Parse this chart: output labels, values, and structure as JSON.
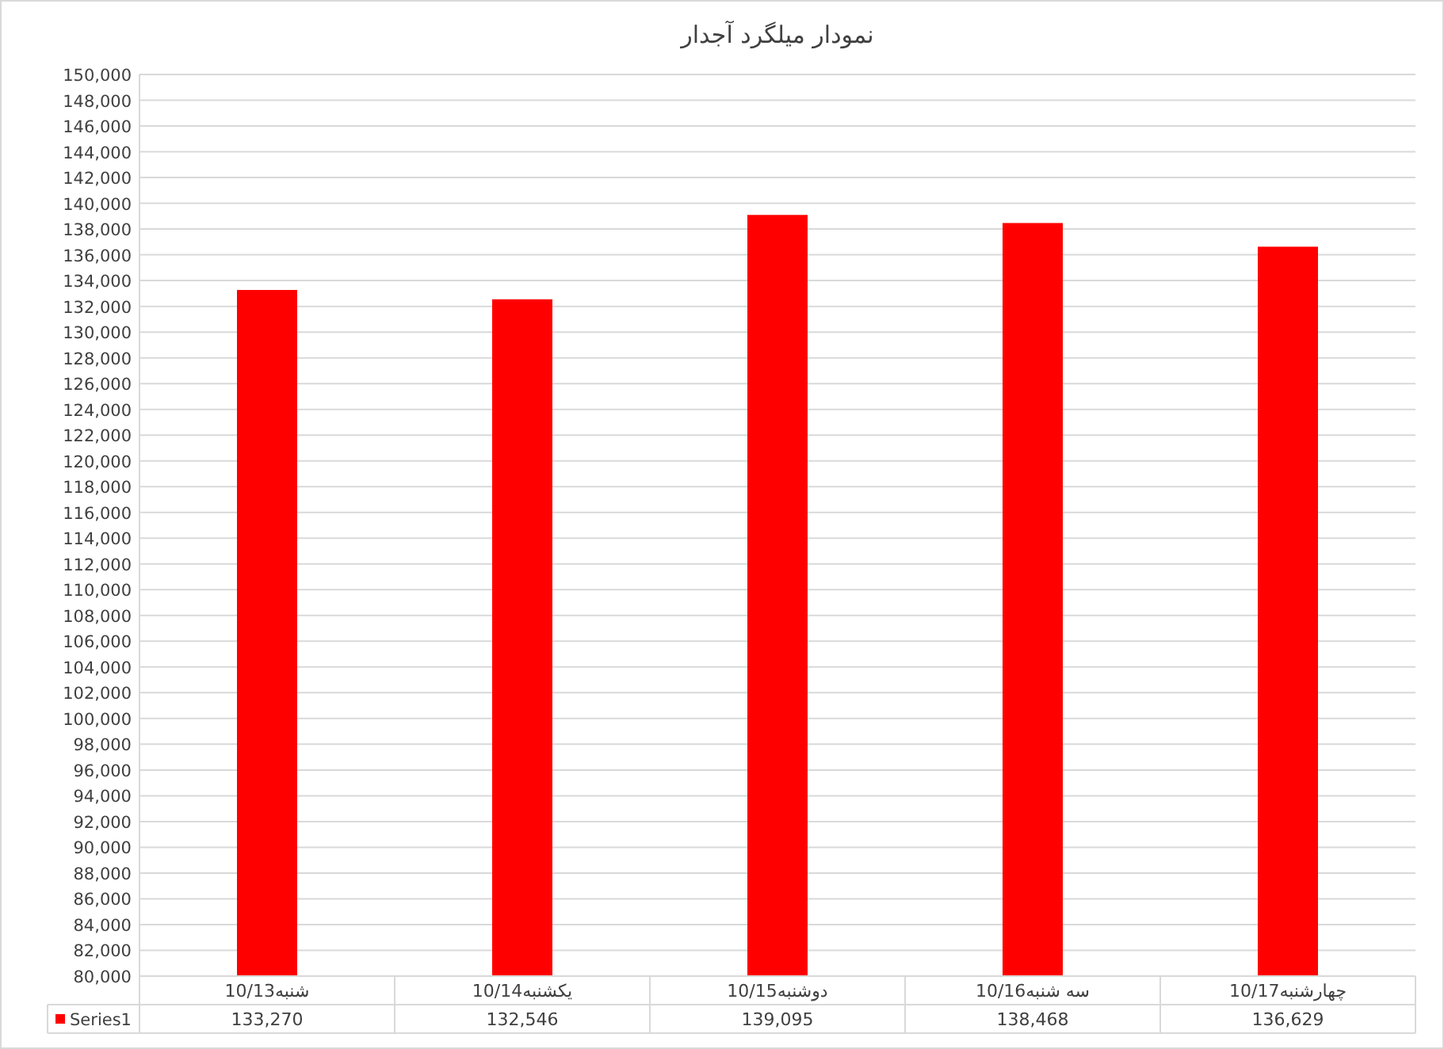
{
  "chart_data": {
    "type": "bar",
    "title": "نمودار میلگرد آجدار",
    "categories": [
      "شنبه10/13",
      "یکشنبه10/14",
      "دوشنبه10/15",
      "سه شنبه10/16",
      "چهارشنبه10/17"
    ],
    "series": [
      {
        "name": "Series1",
        "color": "#ff0000",
        "values": [
          133270,
          132546,
          139095,
          138468,
          136629
        ],
        "value_labels": [
          "133,270",
          "132,546",
          "139,095",
          "138,468",
          "136,629"
        ]
      }
    ],
    "ylim": [
      80000,
      150000
    ],
    "yticks": [
      {
        "value": 80000,
        "label": "80,000"
      },
      {
        "value": 82000,
        "label": "82,000"
      },
      {
        "value": 84000,
        "label": "84,000"
      },
      {
        "value": 86000,
        "label": "86,000"
      },
      {
        "value": 88000,
        "label": "88,000"
      },
      {
        "value": 90000,
        "label": "90,000"
      },
      {
        "value": 92000,
        "label": "92,000"
      },
      {
        "value": 94000,
        "label": "94,000"
      },
      {
        "value": 96000,
        "label": "96,000"
      },
      {
        "value": 98000,
        "label": "98,000"
      },
      {
        "value": 100000,
        "label": "100,000"
      },
      {
        "value": 102000,
        "label": "102,000"
      },
      {
        "value": 104000,
        "label": "104,000"
      },
      {
        "value": 106000,
        "label": "106,000"
      },
      {
        "value": 108000,
        "label": "108,000"
      },
      {
        "value": 110000,
        "label": "110,000"
      },
      {
        "value": 112000,
        "label": "112,000"
      },
      {
        "value": 114000,
        "label": "114,000"
      },
      {
        "value": 116000,
        "label": "116,000"
      },
      {
        "value": 118000,
        "label": "118,000"
      },
      {
        "value": 120000,
        "label": "120,000"
      },
      {
        "value": 122000,
        "label": "122,000"
      },
      {
        "value": 124000,
        "label": "124,000"
      },
      {
        "value": 126000,
        "label": "126,000"
      },
      {
        "value": 128000,
        "label": "128,000"
      },
      {
        "value": 130000,
        "label": "130,000"
      },
      {
        "value": 132000,
        "label": "132,000"
      },
      {
        "value": 134000,
        "label": "134,000"
      },
      {
        "value": 136000,
        "label": "136,000"
      },
      {
        "value": 138000,
        "label": "138,000"
      },
      {
        "value": 140000,
        "label": "140,000"
      },
      {
        "value": 142000,
        "label": "142,000"
      },
      {
        "value": 144000,
        "label": "144,000"
      },
      {
        "value": 146000,
        "label": "146,000"
      },
      {
        "value": 148000,
        "label": "148,000"
      },
      {
        "value": 150000,
        "label": "150,000"
      }
    ],
    "grid": "y",
    "legend": "bottom left"
  }
}
